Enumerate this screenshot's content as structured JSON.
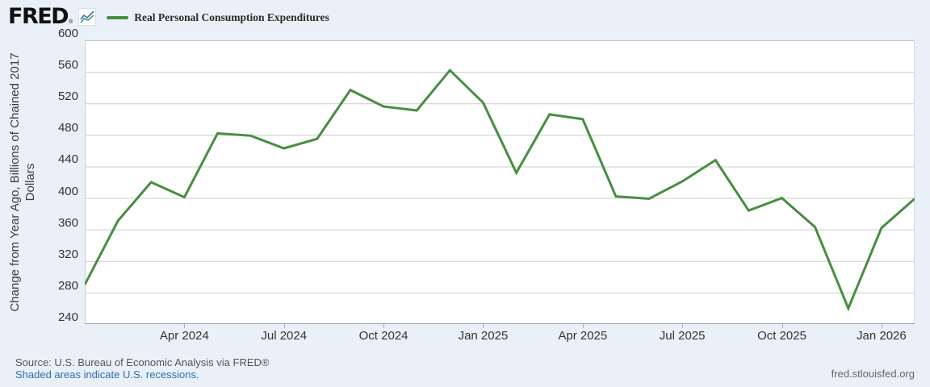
{
  "header": {
    "logo_text": "FRED",
    "registered_mark": "®",
    "logo_icon": "fred-sparkline-icon",
    "legend_label": "Real Personal Consumption Expenditures"
  },
  "chart_data": {
    "type": "line",
    "title": "Real Personal Consumption Expenditures",
    "ylabel": "Change from Year Ago, Billions of Chained 2017 Dollars",
    "ylim": [
      240,
      600
    ],
    "ytick_step": 40,
    "yticks": [
      240,
      280,
      320,
      360,
      400,
      440,
      480,
      520,
      560,
      600
    ],
    "grid": true,
    "legend_position": "top-left",
    "line_color": "#478e41",
    "x": [
      "Jan 2024",
      "Feb 2024",
      "Mar 2024",
      "Apr 2024",
      "May 2024",
      "Jun 2024",
      "Jul 2024",
      "Aug 2024",
      "Sep 2024",
      "Oct 2024",
      "Nov 2024",
      "Dec 2024",
      "Jan 2025",
      "Feb 2025",
      "Mar 2025",
      "Apr 2025",
      "May 2025",
      "Jun 2025",
      "Jul 2025",
      "Aug 2025",
      "Sep 2025",
      "Oct 2025",
      "Nov 2025",
      "Dec 2025",
      "Jan 2026",
      "Feb 2026"
    ],
    "values": [
      290,
      371,
      420,
      401,
      482,
      479,
      463,
      475,
      537,
      516,
      511,
      562,
      521,
      432,
      506,
      500,
      402,
      399,
      421,
      448,
      384,
      400,
      363,
      260,
      362,
      399
    ],
    "xtick_indices": [
      3,
      6,
      9,
      12,
      15,
      18,
      21,
      24
    ],
    "xtick_labels": [
      "Apr 2024",
      "Jul 2024",
      "Oct 2024",
      "Jan 2025",
      "Apr 2025",
      "Jul 2025",
      "Oct 2025",
      "Jan 2026"
    ]
  },
  "footer": {
    "source": "Source: U.S. Bureau of Economic Analysis via FRED®",
    "recession_note": "Shaded areas indicate U.S. recessions.",
    "site": "fred.stlouisfed.org"
  },
  "colors": {
    "background": "#e9f0f8",
    "plot_background": "#ffffff",
    "series_green": "#478e41",
    "gridline": "#cccccc",
    "axis_line": "#99a1a8",
    "link_blue": "#2d6fad",
    "logo_icon_blue": "#3d6fb0",
    "logo_icon_green": "#3f9b6e"
  }
}
